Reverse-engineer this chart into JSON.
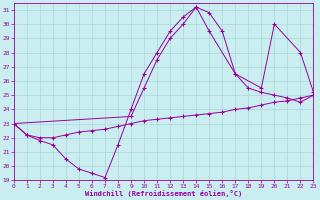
{
  "xlabel": "Windchill (Refroidissement éolien,°C)",
  "xlim": [
    0,
    23
  ],
  "ylim": [
    19,
    31.5
  ],
  "xticks": [
    0,
    1,
    2,
    3,
    4,
    5,
    6,
    7,
    8,
    9,
    10,
    11,
    12,
    13,
    14,
    15,
    16,
    17,
    18,
    19,
    20,
    21,
    22,
    23
  ],
  "yticks": [
    19,
    20,
    21,
    22,
    23,
    24,
    25,
    26,
    27,
    28,
    29,
    30,
    31
  ],
  "bg_color": "#caeef0",
  "grid_color": "#a8d8dc",
  "line_color": "#990099",
  "line1_x": [
    0,
    1,
    2,
    3,
    4,
    5,
    6,
    7,
    8,
    9,
    10,
    11,
    12,
    13,
    14,
    15,
    16,
    17,
    18,
    19,
    20,
    21,
    22,
    23
  ],
  "line1_y": [
    23.0,
    22.2,
    22.0,
    22.0,
    22.2,
    22.4,
    22.5,
    22.6,
    22.8,
    23.0,
    23.2,
    23.3,
    23.4,
    23.5,
    23.6,
    23.7,
    23.8,
    24.0,
    24.1,
    24.3,
    24.5,
    24.6,
    24.8,
    25.0
  ],
  "line2_x": [
    0,
    1,
    2,
    3,
    4,
    5,
    6,
    7,
    8,
    9,
    10,
    11,
    12,
    13,
    14,
    15,
    16,
    17,
    18,
    19,
    20,
    21,
    22,
    23
  ],
  "line2_y": [
    23.0,
    22.2,
    21.8,
    21.5,
    20.5,
    19.8,
    19.5,
    19.2,
    21.5,
    24.0,
    26.5,
    28.0,
    29.5,
    30.5,
    31.2,
    30.8,
    29.5,
    26.5,
    25.5,
    25.2,
    25.0,
    24.8,
    24.5,
    25.0
  ],
  "line3_x": [
    0,
    9,
    10,
    11,
    12,
    13,
    14,
    15,
    17,
    19,
    20,
    22,
    23
  ],
  "line3_y": [
    23.0,
    23.5,
    25.5,
    27.5,
    29.0,
    30.0,
    31.2,
    29.5,
    26.5,
    25.5,
    30.0,
    28.0,
    25.2
  ]
}
